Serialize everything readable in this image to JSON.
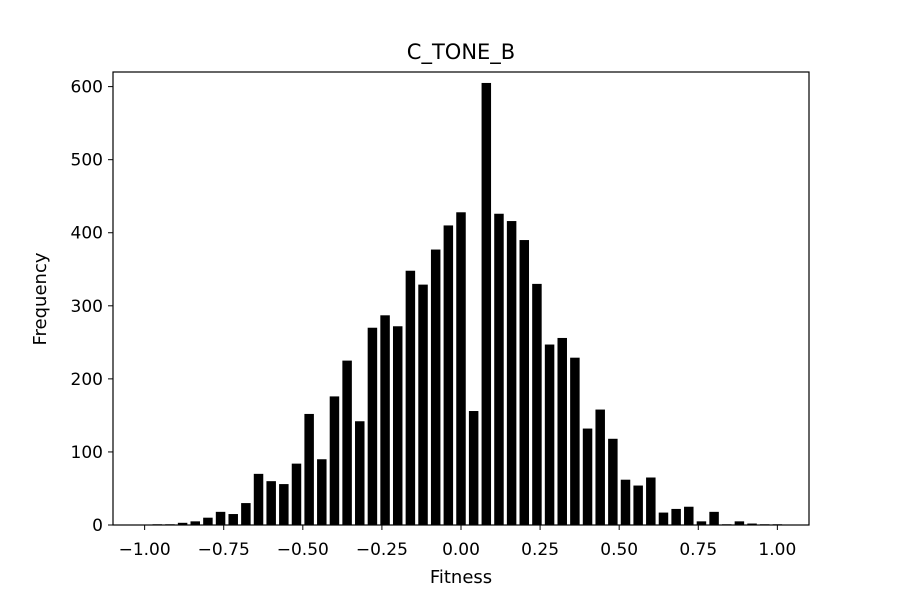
{
  "chart_data": {
    "type": "bar",
    "title": "C_TONE_B",
    "xlabel": "Fitness",
    "ylabel": "Frequency",
    "xlim": [
      -1.1,
      1.1
    ],
    "ylim": [
      0,
      620
    ],
    "xticks": [
      -1.0,
      -0.75,
      -0.5,
      -0.25,
      0.0,
      0.25,
      0.5,
      0.75,
      1.0
    ],
    "xtick_labels": [
      "−1.00",
      "−0.75",
      "−0.50",
      "−0.25",
      "0.00",
      "0.25",
      "0.50",
      "0.75",
      "1.00"
    ],
    "yticks": [
      0,
      100,
      200,
      300,
      400,
      500,
      600
    ],
    "ytick_labels": [
      "0",
      "100",
      "200",
      "300",
      "400",
      "500",
      "600"
    ],
    "bar_width": 0.03,
    "bar_color": "#000000",
    "grid": false,
    "x": [
      -1.0,
      -0.96,
      -0.92,
      -0.88,
      -0.84,
      -0.8,
      -0.76,
      -0.72,
      -0.68,
      -0.64,
      -0.6,
      -0.56,
      -0.52,
      -0.48,
      -0.44,
      -0.4,
      -0.36,
      -0.32,
      -0.28,
      -0.24,
      -0.2,
      -0.16,
      -0.12,
      -0.08,
      -0.04,
      0.0,
      0.04,
      0.08,
      0.12,
      0.16,
      0.2,
      0.24,
      0.28,
      0.32,
      0.36,
      0.4,
      0.44,
      0.48,
      0.52,
      0.56,
      0.6,
      0.64,
      0.68,
      0.72,
      0.76,
      0.8,
      0.84,
      0.88,
      0.92,
      0.96,
      1.0
    ],
    "values": [
      0,
      1,
      1,
      3,
      5,
      10,
      18,
      15,
      30,
      70,
      60,
      56,
      84,
      152,
      90,
      176,
      225,
      142,
      270,
      287,
      272,
      348,
      329,
      377,
      410,
      428,
      156,
      605,
      426,
      416,
      390,
      330,
      247,
      256,
      229,
      132,
      158,
      118,
      62,
      54,
      65,
      17,
      22,
      25,
      5,
      18,
      1,
      5,
      2,
      1,
      1
    ]
  }
}
